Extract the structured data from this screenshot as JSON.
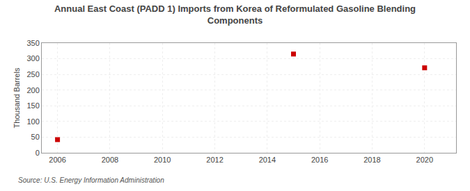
{
  "chart_data": {
    "type": "scatter",
    "title": "Annual East Coast (PADD 1) Imports from Korea of Reformulated Gasoline Blending\nComponents",
    "ylabel": "Thousand Barrels",
    "source": "Source: U.S. Energy Information Administration",
    "x": [
      2006,
      2015,
      2020
    ],
    "values": [
      42,
      315,
      271
    ],
    "color": "#cc0000",
    "marker": "square",
    "xlim": [
      2005.4,
      2021.2
    ],
    "ylim": [
      0,
      350
    ],
    "xticks": [
      2006,
      2008,
      2010,
      2012,
      2014,
      2016,
      2018,
      2020
    ],
    "yticks": [
      0,
      50,
      100,
      150,
      200,
      250,
      300,
      350
    ],
    "grid": true
  }
}
